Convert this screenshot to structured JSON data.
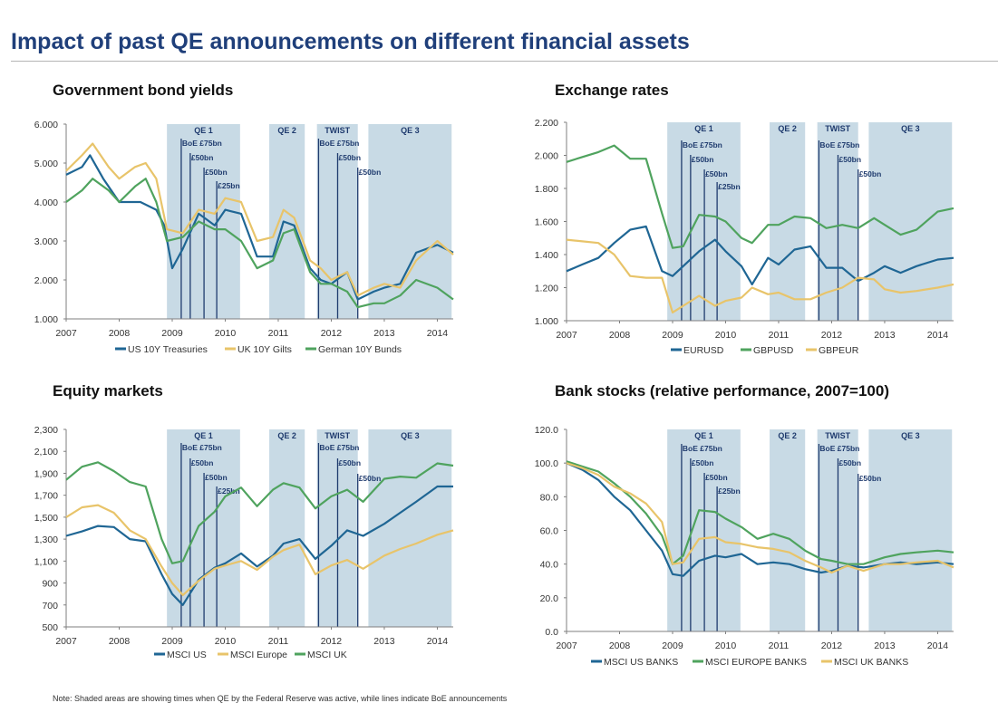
{
  "page": {
    "title": "Impact of past QE announcements on different financial assets",
    "footnote": "Note: Shaded areas are showing times when QE by the Federal Reserve was active, while lines indicate BoE announcements"
  },
  "colors": {
    "shade": "#c8dae5",
    "boe_line": "#1f3b6e",
    "navy_text": "#1f3b6e",
    "us": "#1f6694",
    "uk": "#e8c46a",
    "europe_green": "#4fa35e",
    "axis": "#7f7f7f"
  },
  "shared": {
    "x_ticks": [
      "2007",
      "2008",
      "2009",
      "2010",
      "2011",
      "2012",
      "2013",
      "2014"
    ],
    "qe_periods": [
      {
        "label": "QE 1",
        "start": 2008.9,
        "end": 2010.28
      },
      {
        "label": "QE 2",
        "start": 2010.83,
        "end": 2011.5
      },
      {
        "label": "TWIST",
        "start": 2011.73,
        "end": 2012.5
      },
      {
        "label": "QE 3",
        "start": 2012.7,
        "end": 2014.27
      }
    ],
    "boe_announcements": [
      {
        "date": 2009.17,
        "label": "BoE £75bn"
      },
      {
        "date": 2009.34,
        "label": "£50bn"
      },
      {
        "date": 2009.6,
        "label": "£50bn"
      },
      {
        "date": 2009.84,
        "label": "£25bn"
      },
      {
        "date": 2011.76,
        "label": "BoE £75bn"
      },
      {
        "date": 2012.12,
        "label": "£50bn"
      },
      {
        "date": 2012.5,
        "label": "£50bn"
      }
    ]
  },
  "chart_data": [
    {
      "type": "line",
      "title": "Government bond yields",
      "xlim": [
        2007,
        2014.3
      ],
      "ylim": [
        1,
        6
      ],
      "y_ticks": [
        "1.000",
        "2.000",
        "3.000",
        "4.000",
        "5.000",
        "6.000"
      ],
      "series": [
        {
          "name": "US 10Y Treasuries",
          "color_key": "us",
          "x": [
            2007,
            2007.3,
            2007.45,
            2007.7,
            2008,
            2008.4,
            2008.7,
            2008.85,
            2009,
            2009.2,
            2009.5,
            2009.8,
            2010,
            2010.3,
            2010.6,
            2010.9,
            2011.1,
            2011.3,
            2011.6,
            2011.8,
            2012,
            2012.3,
            2012.5,
            2012.8,
            2013,
            2013.3,
            2013.6,
            2014,
            2014.3
          ],
          "y": [
            4.7,
            4.9,
            5.2,
            4.6,
            4.0,
            4.0,
            3.8,
            3.4,
            2.3,
            2.8,
            3.7,
            3.4,
            3.8,
            3.7,
            2.6,
            2.6,
            3.5,
            3.4,
            2.3,
            2.0,
            1.9,
            2.2,
            1.5,
            1.7,
            1.8,
            1.9,
            2.7,
            2.9,
            2.7
          ]
        },
        {
          "name": "UK 10Y Gilts",
          "color_key": "uk",
          "x": [
            2007,
            2007.3,
            2007.5,
            2007.8,
            2008,
            2008.3,
            2008.5,
            2008.7,
            2008.9,
            2009.2,
            2009.5,
            2009.8,
            2010,
            2010.3,
            2010.6,
            2010.9,
            2011.1,
            2011.3,
            2011.6,
            2011.8,
            2012,
            2012.3,
            2012.5,
            2012.8,
            2013,
            2013.3,
            2013.6,
            2014,
            2014.3
          ],
          "y": [
            4.8,
            5.2,
            5.5,
            4.9,
            4.6,
            4.9,
            5.0,
            4.6,
            3.3,
            3.2,
            3.8,
            3.7,
            4.1,
            4.0,
            3.0,
            3.1,
            3.8,
            3.6,
            2.5,
            2.3,
            2.0,
            2.2,
            1.6,
            1.8,
            1.9,
            1.8,
            2.5,
            3.0,
            2.65
          ]
        },
        {
          "name": "German 10Y Bunds",
          "color_key": "europe_green",
          "x": [
            2007,
            2007.3,
            2007.5,
            2007.8,
            2008,
            2008.3,
            2008.5,
            2008.7,
            2008.9,
            2009.2,
            2009.5,
            2009.8,
            2010,
            2010.3,
            2010.6,
            2010.9,
            2011.1,
            2011.3,
            2011.6,
            2011.8,
            2012,
            2012.3,
            2012.5,
            2012.8,
            2013,
            2013.3,
            2013.6,
            2014,
            2014.3
          ],
          "y": [
            4.0,
            4.3,
            4.6,
            4.3,
            4.0,
            4.4,
            4.6,
            4.0,
            3.0,
            3.1,
            3.5,
            3.3,
            3.3,
            3.0,
            2.3,
            2.5,
            3.2,
            3.3,
            2.2,
            1.9,
            1.9,
            1.7,
            1.3,
            1.4,
            1.4,
            1.6,
            2.0,
            1.8,
            1.5
          ]
        }
      ]
    },
    {
      "type": "line",
      "title": "Exchange rates",
      "xlim": [
        2007,
        2014.3
      ],
      "ylim": [
        1.0,
        2.2
      ],
      "y_ticks": [
        "1.000",
        "1.200",
        "1.400",
        "1.600",
        "1.800",
        "2.000",
        "2.200"
      ],
      "series": [
        {
          "name": "EURUSD",
          "color_key": "us",
          "x": [
            2007,
            2007.3,
            2007.6,
            2007.9,
            2008.2,
            2008.5,
            2008.8,
            2009,
            2009.2,
            2009.5,
            2009.8,
            2010,
            2010.3,
            2010.5,
            2010.8,
            2011,
            2011.3,
            2011.6,
            2011.9,
            2012.2,
            2012.5,
            2012.8,
            2013,
            2013.3,
            2013.6,
            2014,
            2014.3
          ],
          "y": [
            1.3,
            1.34,
            1.38,
            1.47,
            1.55,
            1.57,
            1.3,
            1.27,
            1.33,
            1.42,
            1.49,
            1.42,
            1.33,
            1.22,
            1.38,
            1.34,
            1.43,
            1.45,
            1.32,
            1.32,
            1.24,
            1.29,
            1.33,
            1.29,
            1.33,
            1.37,
            1.38
          ]
        },
        {
          "name": "GBPUSD",
          "color_key": "europe_green",
          "x": [
            2007,
            2007.3,
            2007.6,
            2007.9,
            2008.2,
            2008.5,
            2008.8,
            2009,
            2009.2,
            2009.5,
            2009.8,
            2010,
            2010.3,
            2010.5,
            2010.8,
            2011,
            2011.3,
            2011.6,
            2011.9,
            2012.2,
            2012.5,
            2012.8,
            2013,
            2013.3,
            2013.6,
            2014,
            2014.3
          ],
          "y": [
            1.96,
            1.99,
            2.02,
            2.06,
            1.98,
            1.98,
            1.65,
            1.44,
            1.45,
            1.64,
            1.63,
            1.6,
            1.5,
            1.47,
            1.58,
            1.58,
            1.63,
            1.62,
            1.56,
            1.58,
            1.56,
            1.62,
            1.58,
            1.52,
            1.55,
            1.66,
            1.68
          ]
        },
        {
          "name": "GBPEUR",
          "color_key": "uk",
          "x": [
            2007,
            2007.3,
            2007.6,
            2007.9,
            2008.2,
            2008.5,
            2008.8,
            2009,
            2009.2,
            2009.5,
            2009.8,
            2010,
            2010.3,
            2010.5,
            2010.8,
            2011,
            2011.3,
            2011.6,
            2011.9,
            2012.2,
            2012.5,
            2012.8,
            2013,
            2013.3,
            2013.6,
            2014,
            2014.3
          ],
          "y": [
            1.49,
            1.48,
            1.47,
            1.4,
            1.27,
            1.26,
            1.26,
            1.05,
            1.09,
            1.15,
            1.09,
            1.12,
            1.14,
            1.2,
            1.16,
            1.17,
            1.13,
            1.13,
            1.17,
            1.2,
            1.26,
            1.25,
            1.19,
            1.17,
            1.18,
            1.2,
            1.22
          ]
        }
      ]
    },
    {
      "type": "line",
      "title": "Equity markets",
      "xlim": [
        2007,
        2014.3
      ],
      "ylim": [
        500,
        2300
      ],
      "y_ticks": [
        "500",
        "700",
        "900",
        "1,100",
        "1,300",
        "1,500",
        "1,700",
        "1,900",
        "2,100",
        "2,300"
      ],
      "series": [
        {
          "name": "MSCI US",
          "color_key": "us",
          "x": [
            2007,
            2007.3,
            2007.6,
            2007.9,
            2008.2,
            2008.5,
            2008.8,
            2009,
            2009.2,
            2009.5,
            2009.8,
            2010,
            2010.3,
            2010.6,
            2010.9,
            2011.1,
            2011.4,
            2011.7,
            2012,
            2012.3,
            2012.6,
            2013,
            2013.3,
            2013.6,
            2014,
            2014.3
          ],
          "y": [
            1330,
            1370,
            1420,
            1410,
            1300,
            1280,
            980,
            800,
            700,
            930,
            1040,
            1080,
            1170,
            1050,
            1150,
            1260,
            1300,
            1120,
            1240,
            1380,
            1330,
            1440,
            1540,
            1640,
            1780,
            1780
          ]
        },
        {
          "name": "MSCI Europe",
          "color_key": "uk",
          "x": [
            2007,
            2007.3,
            2007.6,
            2007.9,
            2008.2,
            2008.5,
            2008.8,
            2009,
            2009.2,
            2009.5,
            2009.8,
            2010,
            2010.3,
            2010.6,
            2010.9,
            2011.1,
            2011.4,
            2011.7,
            2012,
            2012.3,
            2012.6,
            2013,
            2013.3,
            2013.6,
            2014,
            2014.3
          ],
          "y": [
            1500,
            1590,
            1610,
            1540,
            1380,
            1300,
            1050,
            900,
            790,
            920,
            1030,
            1060,
            1100,
            1020,
            1140,
            1200,
            1250,
            980,
            1060,
            1110,
            1030,
            1150,
            1210,
            1260,
            1340,
            1380
          ]
        },
        {
          "name": "MSCI UK",
          "color_key": "europe_green",
          "x": [
            2007,
            2007.3,
            2007.6,
            2007.9,
            2008.2,
            2008.5,
            2008.8,
            2009,
            2009.2,
            2009.5,
            2009.8,
            2010,
            2010.3,
            2010.6,
            2010.9,
            2011.1,
            2011.4,
            2011.7,
            2012,
            2012.3,
            2012.6,
            2013,
            2013.3,
            2013.6,
            2014,
            2014.3
          ],
          "y": [
            1840,
            1960,
            2000,
            1920,
            1820,
            1780,
            1300,
            1080,
            1100,
            1420,
            1550,
            1690,
            1770,
            1600,
            1750,
            1810,
            1770,
            1580,
            1690,
            1750,
            1640,
            1850,
            1870,
            1860,
            1990,
            1970
          ]
        }
      ]
    },
    {
      "type": "line",
      "title": "Bank stocks (relative performance, 2007=100)",
      "xlim": [
        2007,
        2014.3
      ],
      "ylim": [
        0,
        120
      ],
      "y_ticks": [
        "0.0",
        "20.0",
        "40.0",
        "60.0",
        "80.0",
        "100.0",
        "120.0"
      ],
      "series": [
        {
          "name": "MSCI US BANKS",
          "color_key": "us",
          "x": [
            2007,
            2007.3,
            2007.6,
            2007.9,
            2008.2,
            2008.5,
            2008.8,
            2009,
            2009.2,
            2009.5,
            2009.8,
            2010,
            2010.3,
            2010.6,
            2010.9,
            2011.2,
            2011.5,
            2011.8,
            2012,
            2012.3,
            2012.6,
            2013,
            2013.3,
            2013.6,
            2014,
            2014.3
          ],
          "y": [
            100,
            96,
            90,
            80,
            72,
            60,
            48,
            34,
            33,
            42,
            45,
            44,
            46,
            40,
            41,
            40,
            37,
            35,
            36,
            39,
            38,
            40,
            41,
            40,
            41,
            40
          ]
        },
        {
          "name": "MSCI EUROPE BANKS",
          "color_key": "europe_green",
          "x": [
            2007,
            2007.3,
            2007.6,
            2007.9,
            2008.2,
            2008.5,
            2008.8,
            2009,
            2009.2,
            2009.5,
            2009.8,
            2010,
            2010.3,
            2010.6,
            2010.9,
            2011.2,
            2011.5,
            2011.8,
            2012,
            2012.3,
            2012.6,
            2013,
            2013.3,
            2013.6,
            2014,
            2014.3
          ],
          "y": [
            101,
            98,
            95,
            88,
            80,
            70,
            57,
            40,
            45,
            72,
            71,
            67,
            62,
            55,
            58,
            55,
            48,
            43,
            42,
            40,
            40,
            44,
            46,
            47,
            48,
            47
          ]
        },
        {
          "name": "MSCI UK BANKS",
          "color_key": "uk",
          "x": [
            2007,
            2007.3,
            2007.6,
            2007.9,
            2008.2,
            2008.5,
            2008.8,
            2009,
            2009.2,
            2009.5,
            2009.8,
            2010,
            2010.3,
            2010.6,
            2010.9,
            2011.2,
            2011.5,
            2011.8,
            2012,
            2012.3,
            2012.6,
            2013,
            2013.3,
            2013.6,
            2014,
            2014.3
          ],
          "y": [
            100,
            97,
            93,
            86,
            82,
            76,
            65,
            40,
            41,
            55,
            56,
            53,
            52,
            50,
            49,
            47,
            42,
            38,
            35,
            39,
            36,
            40,
            40,
            41,
            42,
            38
          ]
        }
      ]
    }
  ]
}
